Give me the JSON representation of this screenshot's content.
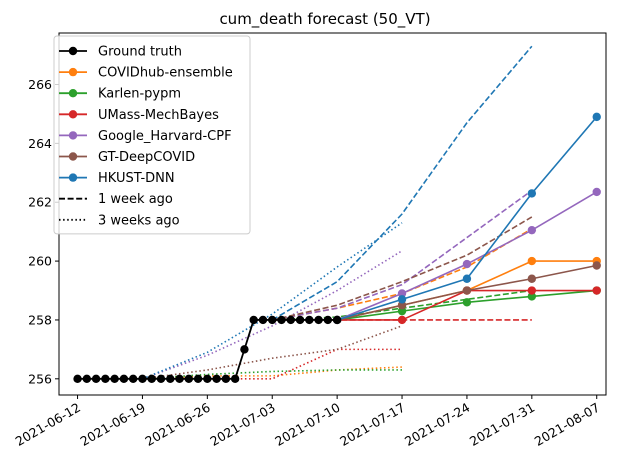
{
  "chart_data": {
    "type": "line",
    "title": "cum_death forecast (50_VT)",
    "xlabel": "",
    "ylabel": "",
    "x_ticks": [
      "2021-06-12",
      "2021-06-19",
      "2021-06-26",
      "2021-07-03",
      "2021-07-10",
      "2021-07-17",
      "2021-07-24",
      "2021-07-31",
      "2021-08-07"
    ],
    "y_ticks": [
      256,
      258,
      260,
      262,
      264,
      266
    ],
    "xlim": [
      "2021-06-10",
      "2021-08-08"
    ],
    "ylim": [
      255.45,
      267.75
    ],
    "grid": false,
    "legend_position": "upper-left",
    "legend": [
      {
        "label": "Ground truth",
        "color": "#000000",
        "style": "solid",
        "marker": true
      },
      {
        "label": "COVIDhub-ensemble",
        "color": "#ff7f0e",
        "style": "solid",
        "marker": true
      },
      {
        "label": "Karlen-pypm",
        "color": "#2ca02c",
        "style": "solid",
        "marker": true
      },
      {
        "label": "UMass-MechBayes",
        "color": "#d62728",
        "style": "solid",
        "marker": true
      },
      {
        "label": "Google_Harvard-CPF",
        "color": "#9467bd",
        "style": "solid",
        "marker": true
      },
      {
        "label": "GT-DeepCOVID",
        "color": "#8c564b",
        "style": "solid",
        "marker": true
      },
      {
        "label": "HKUST-DNN",
        "color": "#1f77b4",
        "style": "solid",
        "marker": true
      },
      {
        "label": "1 week ago",
        "color": "#000000",
        "style": "dashed",
        "marker": false
      },
      {
        "label": "3 weeks ago",
        "color": "#000000",
        "style": "dotted",
        "marker": false
      }
    ],
    "ground_truth": {
      "x": [
        "2021-06-12",
        "2021-06-13",
        "2021-06-14",
        "2021-06-15",
        "2021-06-16",
        "2021-06-17",
        "2021-06-18",
        "2021-06-19",
        "2021-06-20",
        "2021-06-21",
        "2021-06-22",
        "2021-06-23",
        "2021-06-24",
        "2021-06-25",
        "2021-06-26",
        "2021-06-27",
        "2021-06-28",
        "2021-06-29",
        "2021-06-30",
        "2021-07-01",
        "2021-07-02",
        "2021-07-03",
        "2021-07-04",
        "2021-07-05",
        "2021-07-06",
        "2021-07-07",
        "2021-07-08",
        "2021-07-09",
        "2021-07-10"
      ],
      "y": [
        256,
        256,
        256,
        256,
        256,
        256,
        256,
        256,
        256,
        256,
        256,
        256,
        256,
        256,
        256,
        256,
        256,
        256,
        257,
        258,
        258,
        258,
        258,
        258,
        258,
        258,
        258,
        258,
        258
      ]
    },
    "current_forecasts": [
      {
        "name": "COVIDhub-ensemble",
        "color": "#ff7f0e",
        "x": [
          "2021-07-10",
          "2021-07-17",
          "2021-07-24",
          "2021-07-31",
          "2021-08-07"
        ],
        "y": [
          258,
          258.5,
          259,
          260,
          260
        ]
      },
      {
        "name": "Karlen-pypm",
        "color": "#2ca02c",
        "x": [
          "2021-07-10",
          "2021-07-17",
          "2021-07-24",
          "2021-07-31",
          "2021-08-07"
        ],
        "y": [
          258,
          258.3,
          258.6,
          258.8,
          259
        ]
      },
      {
        "name": "UMass-MechBayes",
        "color": "#d62728",
        "x": [
          "2021-07-10",
          "2021-07-17",
          "2021-07-24",
          "2021-07-31",
          "2021-08-07"
        ],
        "y": [
          258,
          258,
          259,
          259,
          259
        ]
      },
      {
        "name": "Google_Harvard-CPF",
        "color": "#9467bd",
        "x": [
          "2021-07-10",
          "2021-07-17",
          "2021-07-24",
          "2021-07-31",
          "2021-08-07"
        ],
        "y": [
          258,
          258.9,
          259.9,
          261.05,
          262.35
        ]
      },
      {
        "name": "GT-DeepCOVID",
        "color": "#8c564b",
        "x": [
          "2021-07-10",
          "2021-07-17",
          "2021-07-24",
          "2021-07-31",
          "2021-08-07"
        ],
        "y": [
          258,
          258.5,
          259,
          259.4,
          259.85
        ]
      },
      {
        "name": "HKUST-DNN",
        "color": "#1f77b4",
        "x": [
          "2021-07-10",
          "2021-07-17",
          "2021-07-24",
          "2021-07-31",
          "2021-08-07"
        ],
        "y": [
          258,
          258.7,
          259.4,
          262.3,
          264.9
        ]
      }
    ],
    "one_week_ago": [
      {
        "name": "COVIDhub-ensemble",
        "color": "#ff7f0e",
        "x": [
          "2021-07-03",
          "2021-07-10",
          "2021-07-17",
          "2021-07-24",
          "2021-07-31"
        ],
        "y": [
          258,
          258.4,
          258.9,
          259.8,
          261.1
        ]
      },
      {
        "name": "Karlen-pypm",
        "color": "#2ca02c",
        "x": [
          "2021-07-03",
          "2021-07-10",
          "2021-07-17",
          "2021-07-24",
          "2021-07-31"
        ],
        "y": [
          258,
          258.1,
          258.4,
          258.7,
          259
        ]
      },
      {
        "name": "UMass-MechBayes",
        "color": "#d62728",
        "x": [
          "2021-07-03",
          "2021-07-10",
          "2021-07-17",
          "2021-07-24",
          "2021-07-31"
        ],
        "y": [
          258,
          258,
          258,
          258,
          258
        ]
      },
      {
        "name": "Google_Harvard-CPF",
        "color": "#9467bd",
        "x": [
          "2021-07-03",
          "2021-07-10",
          "2021-07-17",
          "2021-07-24",
          "2021-07-31"
        ],
        "y": [
          258,
          258.4,
          259.2,
          260.8,
          262.4
        ]
      },
      {
        "name": "GT-DeepCOVID",
        "color": "#8c564b",
        "x": [
          "2021-07-03",
          "2021-07-10",
          "2021-07-17",
          "2021-07-24",
          "2021-07-31"
        ],
        "y": [
          258,
          258.5,
          259.3,
          260.2,
          261.5
        ]
      },
      {
        "name": "HKUST-DNN",
        "color": "#1f77b4",
        "x": [
          "2021-07-03",
          "2021-07-10",
          "2021-07-17",
          "2021-07-24",
          "2021-07-31"
        ],
        "y": [
          258,
          259.3,
          261.6,
          264.7,
          267.3
        ]
      }
    ],
    "three_weeks_ago": [
      {
        "name": "COVIDhub-ensemble",
        "color": "#ff7f0e",
        "x": [
          "2021-06-19",
          "2021-06-26",
          "2021-07-03",
          "2021-07-10",
          "2021-07-17"
        ],
        "y": [
          256,
          256.1,
          256.1,
          256.3,
          256.4
        ]
      },
      {
        "name": "Karlen-pypm",
        "color": "#2ca02c",
        "x": [
          "2021-06-19",
          "2021-06-26",
          "2021-07-03",
          "2021-07-10",
          "2021-07-17"
        ],
        "y": [
          256,
          256.15,
          256.25,
          256.3,
          256.3
        ]
      },
      {
        "name": "UMass-MechBayes",
        "color": "#d62728",
        "x": [
          "2021-06-19",
          "2021-06-26",
          "2021-07-03",
          "2021-07-10",
          "2021-07-17"
        ],
        "y": [
          256,
          256,
          256,
          257,
          257
        ]
      },
      {
        "name": "Google_Harvard-CPF",
        "color": "#9467bd",
        "x": [
          "2021-06-19",
          "2021-06-26",
          "2021-07-03",
          "2021-07-10",
          "2021-07-17"
        ],
        "y": [
          256,
          256.8,
          257.8,
          259,
          260.35
        ]
      },
      {
        "name": "GT-DeepCOVID",
        "color": "#8c564b",
        "x": [
          "2021-06-19",
          "2021-06-26",
          "2021-07-03",
          "2021-07-10",
          "2021-07-17"
        ],
        "y": [
          256,
          256.3,
          256.7,
          257,
          257.8
        ]
      },
      {
        "name": "HKUST-DNN",
        "color": "#1f77b4",
        "x": [
          "2021-06-19",
          "2021-06-26",
          "2021-07-03",
          "2021-07-10",
          "2021-07-17"
        ],
        "y": [
          256,
          256.9,
          258.2,
          259.8,
          261.3
        ]
      }
    ]
  }
}
